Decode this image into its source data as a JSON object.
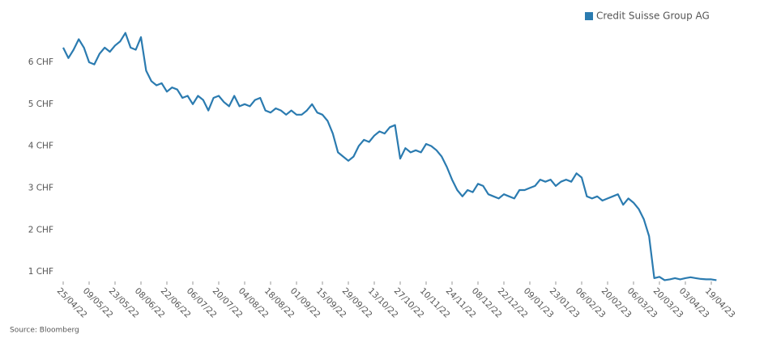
{
  "chart_data": {
    "type": "line",
    "source": "Source: Bloomberg",
    "categories": [
      "25/04/22",
      null,
      null,
      null,
      null,
      "09/05/22",
      null,
      null,
      null,
      null,
      "23/05/22",
      null,
      null,
      null,
      null,
      "08/06/22",
      null,
      null,
      null,
      null,
      "22/06/22",
      null,
      null,
      null,
      null,
      "06/07/22",
      null,
      null,
      null,
      null,
      "20/07/22",
      null,
      null,
      null,
      null,
      "04/08/22",
      null,
      null,
      null,
      null,
      "18/08/22",
      null,
      null,
      null,
      null,
      "01/09/22",
      null,
      null,
      null,
      null,
      "15/09/22",
      null,
      null,
      null,
      null,
      "29/09/22",
      null,
      null,
      null,
      null,
      "13/10/22",
      null,
      null,
      null,
      null,
      "27/10/22",
      null,
      null,
      null,
      null,
      "10/11/22",
      null,
      null,
      null,
      null,
      "24/11/22",
      null,
      null,
      null,
      null,
      "08/12/22",
      null,
      null,
      null,
      null,
      "22/12/22",
      null,
      null,
      null,
      null,
      "09/01/23",
      null,
      null,
      null,
      null,
      "23/01/23",
      null,
      null,
      null,
      null,
      "06/02/23",
      null,
      null,
      null,
      null,
      "20/02/23",
      null,
      null,
      null,
      null,
      "06/03/23",
      null,
      null,
      null,
      null,
      "20/03/23",
      null,
      null,
      null,
      null,
      "03/04/23",
      null,
      null,
      null,
      null,
      "19/04/23",
      null
    ],
    "series": [
      {
        "name": "Credit Suisse Group AG",
        "color": "#2b7bb0",
        "values": [
          6.35,
          6.1,
          6.3,
          6.55,
          6.35,
          6.0,
          5.95,
          6.2,
          6.35,
          6.25,
          6.4,
          6.5,
          6.7,
          6.35,
          6.3,
          6.6,
          5.8,
          5.55,
          5.45,
          5.5,
          5.3,
          5.4,
          5.35,
          5.15,
          5.2,
          5.0,
          5.2,
          5.1,
          4.85,
          5.15,
          5.2,
          5.05,
          4.95,
          5.2,
          4.95,
          5.0,
          4.95,
          5.1,
          5.15,
          4.85,
          4.8,
          4.9,
          4.85,
          4.75,
          4.85,
          4.75,
          4.75,
          4.85,
          5.0,
          4.8,
          4.75,
          4.6,
          4.3,
          3.85,
          3.75,
          3.65,
          3.75,
          4.0,
          4.15,
          4.1,
          4.25,
          4.35,
          4.3,
          4.45,
          4.5,
          3.7,
          3.95,
          3.85,
          3.9,
          3.85,
          4.05,
          4.0,
          3.9,
          3.75,
          3.5,
          3.2,
          2.95,
          2.8,
          2.95,
          2.9,
          3.1,
          3.05,
          2.85,
          2.8,
          2.75,
          2.85,
          2.8,
          2.75,
          2.95,
          2.95,
          3.0,
          3.05,
          3.2,
          3.15,
          3.2,
          3.05,
          3.15,
          3.2,
          3.15,
          3.35,
          3.25,
          2.8,
          2.75,
          2.8,
          2.7,
          2.75,
          2.8,
          2.85,
          2.6,
          2.75,
          2.65,
          2.5,
          2.25,
          1.85,
          0.85,
          0.88,
          0.8,
          0.82,
          0.85,
          0.82,
          0.85,
          0.87,
          0.85,
          0.83,
          0.82,
          0.82,
          0.8
        ]
      }
    ],
    "ylim": [
      0.77,
      7.1
    ],
    "yticks": [
      {
        "value": 1,
        "label": "1 CHF"
      },
      {
        "value": 2,
        "label": "2 CHF"
      },
      {
        "value": 3,
        "label": "3 CHF"
      },
      {
        "value": 4,
        "label": "4 CHF"
      },
      {
        "value": 5,
        "label": "5 CHF"
      },
      {
        "value": 6,
        "label": "6 CHF"
      }
    ],
    "legend": "top-right"
  }
}
